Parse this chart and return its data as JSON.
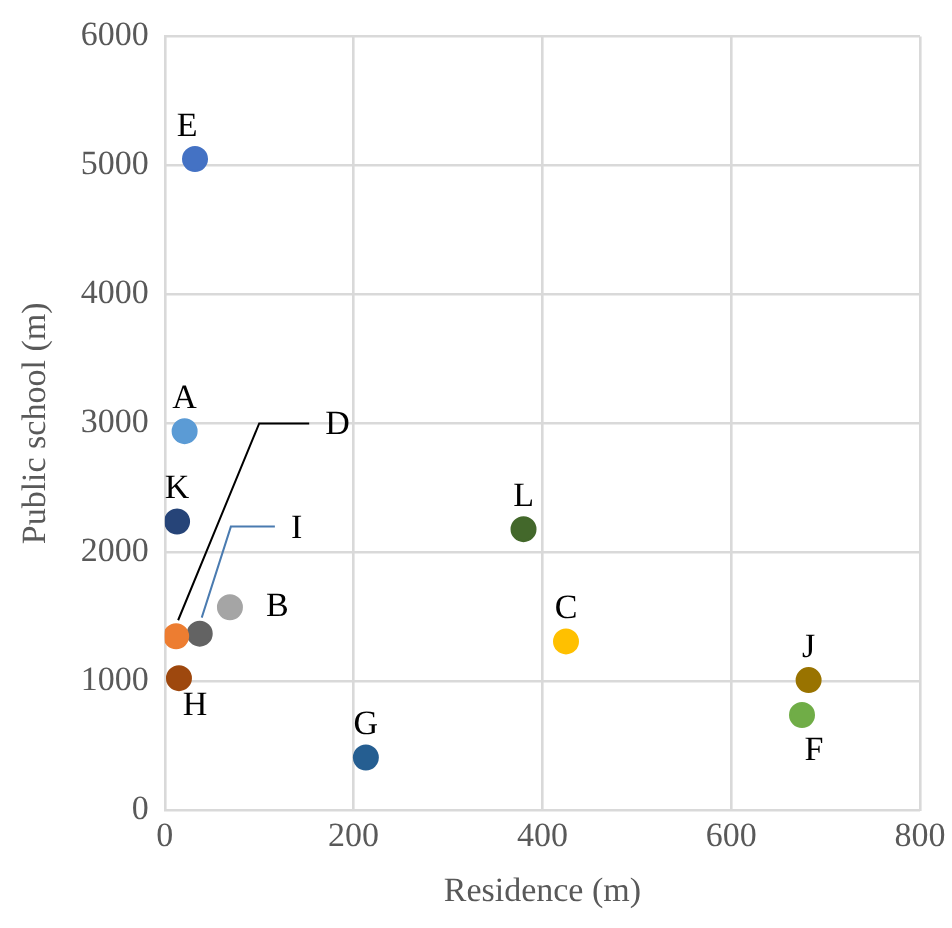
{
  "chart_data": {
    "type": "scatter",
    "xlabel": "Residence (m)",
    "ylabel": "Public school (m)",
    "xlim": [
      0,
      800
    ],
    "xticks": [
      0,
      200,
      400,
      600,
      800
    ],
    "ylim": [
      0,
      6000
    ],
    "yticks": [
      0,
      1000,
      2000,
      3000,
      4000,
      5000,
      6000
    ],
    "grid": true,
    "legend": false,
    "marker": "circle",
    "series": [
      {
        "name": "A",
        "color": "#5b9bd5",
        "x": [
          21
        ],
        "values": [
          2940
        ]
      },
      {
        "name": "B",
        "color": "#a5a5a5",
        "x": [
          69
        ],
        "values": [
          1575
        ]
      },
      {
        "name": "C",
        "color": "#ffc000",
        "x": [
          425
        ],
        "values": [
          1310
        ]
      },
      {
        "name": "D",
        "color": "#ed7d31",
        "x": [
          12
        ],
        "values": [
          1350
        ]
      },
      {
        "name": "E",
        "color": "#4472c4",
        "x": [
          32
        ],
        "values": [
          5050
        ]
      },
      {
        "name": "F",
        "color": "#70ad47",
        "x": [
          675
        ],
        "values": [
          740
        ]
      },
      {
        "name": "G",
        "color": "#255e91",
        "x": [
          213
        ],
        "values": [
          410
        ]
      },
      {
        "name": "H",
        "color": "#9e480e",
        "x": [
          15
        ],
        "values": [
          1025
        ]
      },
      {
        "name": "I",
        "color": "#636363",
        "x": [
          37
        ],
        "values": [
          1370
        ]
      },
      {
        "name": "J",
        "color": "#997300",
        "x": [
          682
        ],
        "values": [
          1010
        ]
      },
      {
        "name": "K",
        "color": "#264478",
        "x": [
          13
        ],
        "values": [
          2240
        ]
      },
      {
        "name": "L",
        "color": "#43682b",
        "x": [
          380
        ],
        "values": [
          2180
        ]
      }
    ]
  }
}
